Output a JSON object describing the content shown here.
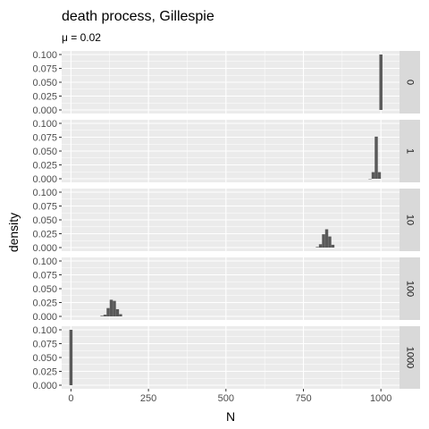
{
  "chart_data": {
    "type": "bar",
    "title": "death process, Gillespie",
    "subtitle_symbol": "μ",
    "subtitle_rest": " = 0.02",
    "xlabel": "N",
    "ylabel": "density",
    "xlim": [
      -30,
      1060
    ],
    "ylim": [
      0,
      0.1
    ],
    "x_ticks": [
      0,
      250,
      500,
      750,
      1000
    ],
    "x_tick_labels": [
      "0",
      "250",
      "500",
      "750",
      "1000"
    ],
    "y_ticks": [
      0,
      0.025,
      0.05,
      0.075,
      0.1
    ],
    "y_tick_labels": [
      "0.000",
      "0.025",
      "0.050",
      "0.075",
      "0.100"
    ],
    "bin_width": 10,
    "bar_color": "#595959",
    "panel_bg": "#ebebeb",
    "strip_bg": "#d9d9d9",
    "panels": [
      {
        "strip": "0",
        "bins": [
          {
            "x0": 995,
            "x1": 1005,
            "density": 0.1
          }
        ]
      },
      {
        "strip": "1",
        "bins": [
          {
            "x0": 960,
            "x1": 970,
            "density": 0.0
          },
          {
            "x0": 970,
            "x1": 980,
            "density": 0.012
          },
          {
            "x0": 980,
            "x1": 990,
            "density": 0.076
          },
          {
            "x0": 990,
            "x1": 1000,
            "density": 0.012
          }
        ]
      },
      {
        "strip": "10",
        "bins": [
          {
            "x0": 790,
            "x1": 800,
            "density": 0.001
          },
          {
            "x0": 800,
            "x1": 810,
            "density": 0.006
          },
          {
            "x0": 810,
            "x1": 820,
            "density": 0.024
          },
          {
            "x0": 820,
            "x1": 830,
            "density": 0.033
          },
          {
            "x0": 830,
            "x1": 840,
            "density": 0.02
          },
          {
            "x0": 840,
            "x1": 850,
            "density": 0.005
          }
        ]
      },
      {
        "strip": "100",
        "bins": [
          {
            "x0": 95,
            "x1": 105,
            "density": 0.001
          },
          {
            "x0": 105,
            "x1": 115,
            "density": 0.003
          },
          {
            "x0": 115,
            "x1": 125,
            "density": 0.015
          },
          {
            "x0": 125,
            "x1": 135,
            "density": 0.03
          },
          {
            "x0": 135,
            "x1": 145,
            "density": 0.028
          },
          {
            "x0": 145,
            "x1": 155,
            "density": 0.013
          },
          {
            "x0": 155,
            "x1": 165,
            "density": 0.004
          }
        ]
      },
      {
        "strip": "1000",
        "bins": [
          {
            "x0": -5,
            "x1": 5,
            "density": 0.1
          }
        ]
      }
    ]
  }
}
